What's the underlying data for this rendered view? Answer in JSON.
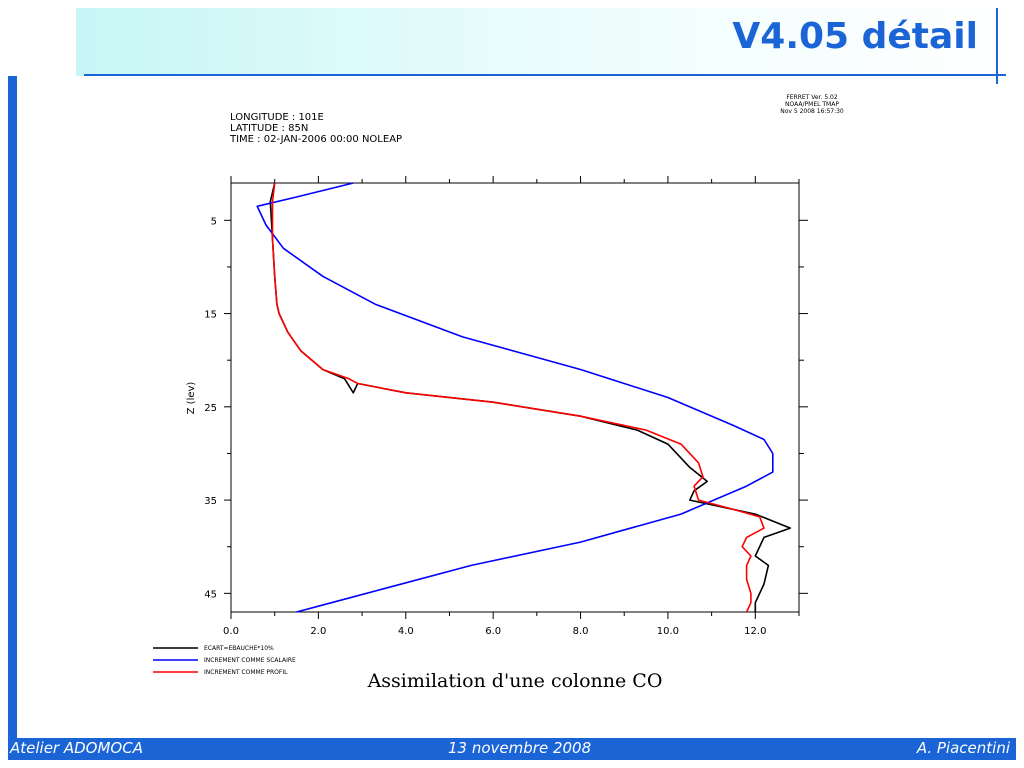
{
  "slide": {
    "title": "V4.05 détail",
    "footer_left": "Atelier ADOMOCA",
    "footer_center": "13 novembre 2008",
    "footer_right": "A. Piacentini"
  },
  "colors": {
    "accent": "#1a64d6",
    "band": "#c7f6f6"
  },
  "chart_data": {
    "type": "line",
    "header": [
      "LONGITUDE : 101E",
      "LATITUDE : 85N",
      "TIME : 02-JAN-2006 00:00 NOLEAP"
    ],
    "stamp": [
      "FERRET Ver. 5.02",
      "NOAA/PMEL TMAP",
      "Nov  5 2008 16:57:30"
    ],
    "caption": "Assimilation d'une colonne CO",
    "xlabel": "",
    "ylabel": "Z (lev)",
    "xlim": [
      0,
      13
    ],
    "ylim": [
      47,
      1
    ],
    "y_inverted": true,
    "x_ticks": [
      "0.0",
      "2.0",
      "4.0",
      "6.0",
      "8.0",
      "10.0",
      "12.0"
    ],
    "y_ticks": [
      "5",
      "15",
      "25",
      "35",
      "45"
    ],
    "legend_position": "bottom-left, below axes",
    "series": [
      {
        "name": "ECART=EBAUCHE*10%",
        "color": "#000000",
        "points": [
          [
            1.0,
            1
          ],
          [
            0.9,
            3
          ],
          [
            0.95,
            7
          ],
          [
            1.0,
            11
          ],
          [
            1.05,
            14
          ],
          [
            1.1,
            15
          ],
          [
            1.3,
            17
          ],
          [
            1.6,
            19
          ],
          [
            2.1,
            21
          ],
          [
            2.6,
            22
          ],
          [
            2.8,
            23.5
          ],
          [
            2.9,
            22.5
          ],
          [
            4.0,
            23.5
          ],
          [
            6.0,
            24.5
          ],
          [
            8.0,
            26
          ],
          [
            9.3,
            27.5
          ],
          [
            10.0,
            29
          ],
          [
            10.5,
            31.5
          ],
          [
            10.9,
            33
          ],
          [
            10.6,
            34
          ],
          [
            10.5,
            35
          ],
          [
            12.0,
            36.5
          ],
          [
            12.8,
            38
          ],
          [
            12.2,
            39
          ],
          [
            12.0,
            41
          ],
          [
            12.3,
            42
          ],
          [
            12.2,
            44
          ],
          [
            12.0,
            46
          ],
          [
            12.0,
            47
          ]
        ]
      },
      {
        "name": "INCREMENT COMME SCALAIRE",
        "color": "#0000ff",
        "points": [
          [
            2.8,
            1
          ],
          [
            1.5,
            2.5
          ],
          [
            0.6,
            3.5
          ],
          [
            0.8,
            5.5
          ],
          [
            1.2,
            8
          ],
          [
            2.1,
            11
          ],
          [
            3.3,
            14
          ],
          [
            5.3,
            17.5
          ],
          [
            8.0,
            21
          ],
          [
            10.0,
            24
          ],
          [
            11.5,
            27
          ],
          [
            12.2,
            28.5
          ],
          [
            12.4,
            30
          ],
          [
            12.4,
            32
          ],
          [
            11.8,
            33.5
          ],
          [
            10.3,
            36.5
          ],
          [
            8.0,
            39.5
          ],
          [
            5.5,
            42
          ],
          [
            3.5,
            44.5
          ],
          [
            2.3,
            46
          ],
          [
            1.5,
            47
          ]
        ]
      },
      {
        "name": "INCREMENT COMME PROFIL",
        "color": "#ff0000",
        "points": [
          [
            1.0,
            1
          ],
          [
            0.95,
            3
          ],
          [
            0.95,
            7
          ],
          [
            1.0,
            11
          ],
          [
            1.05,
            14
          ],
          [
            1.1,
            15
          ],
          [
            1.3,
            17
          ],
          [
            1.6,
            19
          ],
          [
            2.1,
            21
          ],
          [
            2.7,
            22
          ],
          [
            2.9,
            22.5
          ],
          [
            4.0,
            23.5
          ],
          [
            6.0,
            24.5
          ],
          [
            8.0,
            26
          ],
          [
            9.5,
            27.5
          ],
          [
            10.3,
            29
          ],
          [
            10.7,
            31
          ],
          [
            10.8,
            32.5
          ],
          [
            10.6,
            33.5
          ],
          [
            10.7,
            35
          ],
          [
            11.5,
            36
          ],
          [
            12.1,
            36.8
          ],
          [
            12.2,
            38
          ],
          [
            11.8,
            39
          ],
          [
            11.7,
            40
          ],
          [
            11.9,
            41
          ],
          [
            11.8,
            42
          ],
          [
            11.8,
            43.5
          ],
          [
            11.9,
            45
          ],
          [
            11.9,
            46
          ],
          [
            11.8,
            47
          ]
        ]
      }
    ]
  }
}
